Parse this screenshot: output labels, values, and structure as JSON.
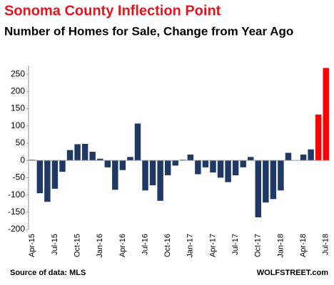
{
  "chart_data": {
    "type": "bar",
    "title": "Sonoma County Inflection Point",
    "subtitle": "Number of Homes for Sale, Change from Year Ago",
    "source": "Source of data: MLS",
    "brand": "WOLFSTREET.com",
    "categories": [
      "Apr-15",
      null,
      null,
      "Jul-15",
      null,
      null,
      "Oct-15",
      null,
      null,
      "Jan-16",
      null,
      null,
      "Apr-16",
      null,
      null,
      "Jul-16",
      null,
      null,
      "Oct-16",
      null,
      null,
      "Jan-17",
      null,
      null,
      "Apr-17",
      null,
      null,
      "Jul-17",
      null,
      null,
      "Oct-17",
      null,
      null,
      "Jan-18",
      null,
      null,
      "Apr-18",
      null,
      null,
      "Jul-18"
    ],
    "values": [
      2,
      -95,
      -120,
      -82,
      -33,
      30,
      47,
      48,
      25,
      5,
      -20,
      -85,
      -28,
      10,
      107,
      -87,
      -72,
      -117,
      -43,
      -15,
      2,
      17,
      -40,
      -20,
      -35,
      -50,
      -63,
      -43,
      -20,
      10,
      -165,
      -122,
      -112,
      -87,
      22,
      0,
      17,
      32,
      133,
      268
    ],
    "colors": [
      "#1f3864",
      "#1f3864",
      "#1f3864",
      "#1f3864",
      "#1f3864",
      "#1f3864",
      "#1f3864",
      "#1f3864",
      "#1f3864",
      "#1f3864",
      "#1f3864",
      "#1f3864",
      "#1f3864",
      "#1f3864",
      "#1f3864",
      "#1f3864",
      "#1f3864",
      "#1f3864",
      "#1f3864",
      "#1f3864",
      "#1f3864",
      "#1f3864",
      "#1f3864",
      "#1f3864",
      "#1f3864",
      "#1f3864",
      "#1f3864",
      "#1f3864",
      "#1f3864",
      "#1f3864",
      "#1f3864",
      "#1f3864",
      "#1f3864",
      "#1f3864",
      "#1f3864",
      "#1f3864",
      "#1f3864",
      "#1f3864",
      "#ff0000",
      "#ff0000"
    ],
    "ylim": [
      -200,
      275
    ],
    "yticks": [
      -200,
      -150,
      -100,
      -50,
      0,
      50,
      100,
      150,
      200,
      250
    ],
    "grid": false
  }
}
